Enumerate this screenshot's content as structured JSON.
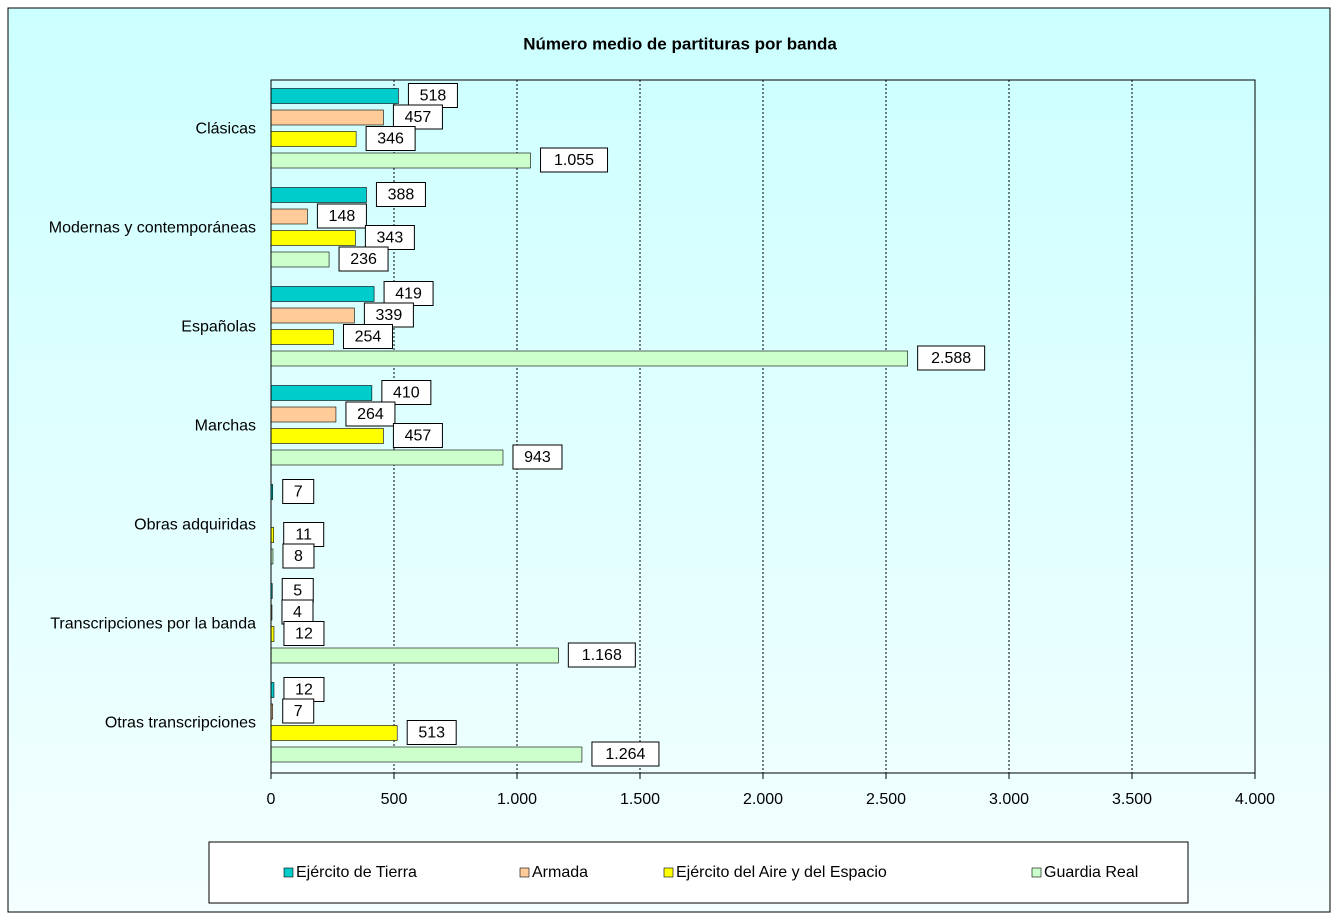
{
  "chart_data": {
    "type": "barh",
    "title": "Número medio de partituras por banda",
    "categories": [
      "Clásicas",
      "Modernas y contemporáneas",
      "Españolas",
      "Marchas",
      "Obras adquiridas",
      "Transcripciones por la banda",
      "Otras transcripciones"
    ],
    "series": [
      {
        "name": "Ejército de Tierra",
        "color": "#00CCCC",
        "values": [
          518,
          388,
          419,
          410,
          7,
          5,
          12
        ],
        "value_labels": [
          "518",
          "388",
          "419",
          "410",
          "7",
          "5",
          "12"
        ]
      },
      {
        "name": "Armada",
        "color": "#FFCC99",
        "values": [
          457,
          148,
          339,
          264,
          null,
          4,
          7
        ],
        "value_labels": [
          "457",
          "148",
          "339",
          "264",
          null,
          "4",
          "7"
        ]
      },
      {
        "name": "Ejército del Aire y del Espacio",
        "color": "#FFFF00",
        "values": [
          346,
          343,
          254,
          457,
          11,
          12,
          513
        ],
        "value_labels": [
          "346",
          "343",
          "254",
          "457",
          "11",
          "12",
          "513"
        ]
      },
      {
        "name": "Guardia Real",
        "color": "#CCFFCC",
        "values": [
          1055,
          236,
          2588,
          943,
          8,
          1168,
          1264
        ],
        "value_labels": [
          "1.055",
          "236",
          "2.588",
          "943",
          "8",
          "1.168",
          "1.264"
        ]
      }
    ],
    "xlim": [
      0,
      4000
    ],
    "xticks": [
      0,
      500,
      {
        "value": 1000,
        "label": "1.000"
      },
      {
        "value": 1500,
        "label": "1.500"
      },
      {
        "value": 2000,
        "label": "2.000"
      },
      {
        "value": 2500,
        "label": "2.500"
      },
      {
        "value": 3000,
        "label": "3.000"
      },
      {
        "value": 3500,
        "label": "3.500"
      },
      {
        "value": 4000,
        "label": "4.000"
      }
    ],
    "grid": true,
    "legend": "bottom"
  }
}
